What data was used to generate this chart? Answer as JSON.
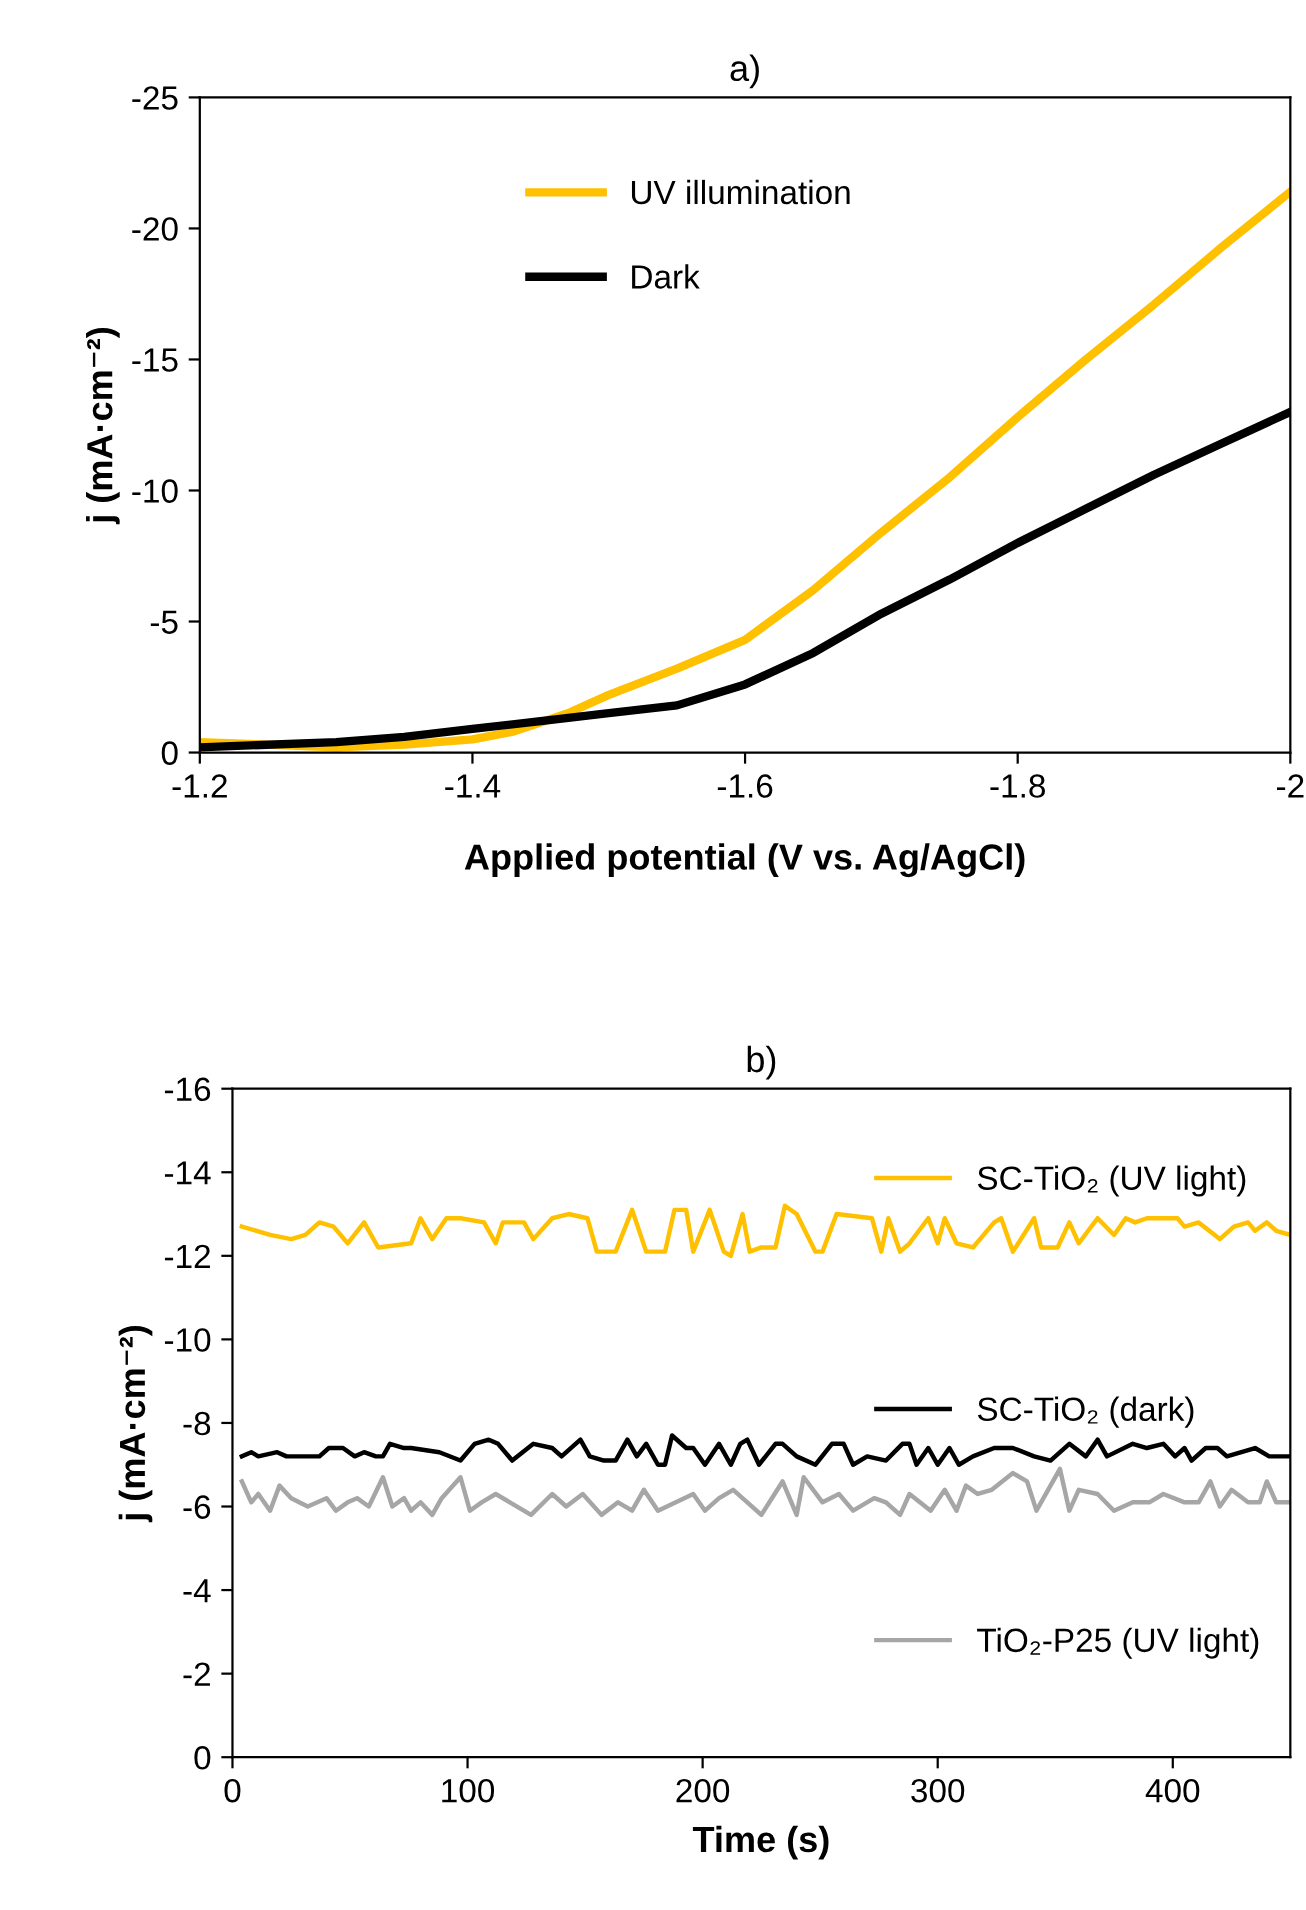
{
  "chart_data": [
    {
      "type": "line",
      "title": "a)",
      "xlabel": "Applied potential (V vs. Ag/AgCl)",
      "ylabel": "j (mA·cm⁻²)",
      "xlim": [
        -1.2,
        -2
      ],
      "xticks": [
        -1.2,
        -1.4,
        -1.6,
        -1.8,
        -2
      ],
      "ylim": [
        0,
        -25
      ],
      "yticks": [
        0,
        -5,
        -10,
        -15,
        -20,
        -25
      ],
      "legend": "top",
      "series": [
        {
          "name": "UV illumination",
          "color": "#ffc000",
          "x": [
            -1.2,
            -1.3,
            -1.35,
            -1.4,
            -1.43,
            -1.47,
            -1.5,
            -1.55,
            -1.6,
            -1.65,
            -1.7,
            -1.75,
            -1.8,
            -1.85,
            -1.9,
            -1.95,
            -2.0
          ],
          "values": [
            -0.4,
            -0.2,
            -0.3,
            -0.5,
            -0.8,
            -1.5,
            -2.2,
            -3.2,
            -4.3,
            -6.2,
            -8.4,
            -10.5,
            -12.8,
            -15.0,
            -17.1,
            -19.3,
            -21.4
          ]
        },
        {
          "name": "Dark",
          "color": "#000000",
          "x": [
            -1.2,
            -1.3,
            -1.35,
            -1.4,
            -1.45,
            -1.5,
            -1.55,
            -1.6,
            -1.65,
            -1.7,
            -1.75,
            -1.8,
            -1.85,
            -1.9,
            -1.95,
            -2.0
          ],
          "values": [
            -0.2,
            -0.4,
            -0.6,
            -0.9,
            -1.2,
            -1.5,
            -1.8,
            -2.6,
            -3.8,
            -5.3,
            -6.6,
            -8.0,
            -9.3,
            -10.6,
            -11.8,
            -13.0
          ]
        }
      ]
    },
    {
      "type": "line",
      "title": "b)",
      "xlabel": "Time (s)",
      "ylabel": "j (mA·cm⁻²)",
      "xlim": [
        0,
        450
      ],
      "xticks": [
        0,
        100,
        200,
        300,
        400
      ],
      "ylim": [
        0,
        -16
      ],
      "yticks": [
        0,
        -2,
        -4,
        -6,
        -8,
        -10,
        -12,
        -14,
        -16
      ],
      "legend": "top right",
      "series": [
        {
          "name": "SC-TiO₂ (UV light)",
          "color": "#ffc000",
          "x": [
            4,
            16,
            25,
            31,
            37,
            43,
            49,
            56,
            62,
            76,
            80,
            85,
            91,
            97,
            107,
            112,
            115,
            124,
            128,
            136,
            143,
            151,
            155,
            163,
            170,
            176,
            184,
            188,
            193,
            196,
            203,
            209,
            212,
            217,
            220,
            225,
            231,
            235,
            240,
            248,
            251,
            257,
            272,
            276,
            279,
            284,
            288,
            296,
            300,
            303,
            308,
            315,
            324,
            327,
            332,
            341,
            344,
            351,
            356,
            360,
            368,
            375,
            380,
            384,
            389,
            402,
            405,
            411,
            420,
            426,
            432,
            435,
            440,
            444,
            450
          ],
          "values": [
            -12.7,
            -12.5,
            -12.4,
            -12.5,
            -12.8,
            -12.7,
            -12.3,
            -12.8,
            -12.2,
            -12.3,
            -12.9,
            -12.4,
            -12.9,
            -12.9,
            -12.8,
            -12.3,
            -12.8,
            -12.8,
            -12.4,
            -12.9,
            -13.0,
            -12.9,
            -12.1,
            -12.1,
            -13.1,
            -12.1,
            -12.1,
            -13.1,
            -13.1,
            -12.1,
            -13.1,
            -12.1,
            -12.0,
            -13.0,
            -12.1,
            -12.2,
            -12.2,
            -13.2,
            -13.0,
            -12.1,
            -12.1,
            -13.0,
            -12.9,
            -12.1,
            -12.9,
            -12.1,
            -12.3,
            -12.9,
            -12.3,
            -12.9,
            -12.3,
            -12.2,
            -12.8,
            -12.9,
            -12.1,
            -12.9,
            -12.2,
            -12.2,
            -12.8,
            -12.3,
            -12.9,
            -12.5,
            -12.9,
            -12.8,
            -12.9,
            -12.9,
            -12.7,
            -12.8,
            -12.4,
            -12.7,
            -12.8,
            -12.6,
            -12.8,
            -12.6,
            -12.5
          ]
        },
        {
          "name": "SC-TiO₂ (dark)",
          "color": "#000000",
          "x": [
            4,
            8,
            11,
            19,
            23,
            34,
            37,
            41,
            47,
            52,
            56,
            61,
            64,
            67,
            73,
            76,
            88,
            97,
            103,
            109,
            113,
            119,
            128,
            136,
            140,
            148,
            152,
            158,
            163,
            168,
            172,
            176,
            181,
            184,
            187,
            193,
            196,
            201,
            207,
            212,
            216,
            219,
            224,
            231,
            234,
            240,
            248,
            255,
            260,
            264,
            270,
            278,
            285,
            288,
            291,
            296,
            300,
            305,
            309,
            315,
            324,
            332,
            341,
            348,
            356,
            363,
            368,
            372,
            383,
            389,
            396,
            401,
            405,
            408,
            414,
            419,
            423,
            435,
            441,
            450
          ],
          "values": [
            -7.2,
            -7.3,
            -7.2,
            -7.3,
            -7.2,
            -7.2,
            -7.2,
            -7.4,
            -7.4,
            -7.2,
            -7.3,
            -7.2,
            -7.2,
            -7.5,
            -7.4,
            -7.4,
            -7.3,
            -7.1,
            -7.5,
            -7.6,
            -7.5,
            -7.1,
            -7.5,
            -7.4,
            -7.2,
            -7.6,
            -7.2,
            -7.1,
            -7.1,
            -7.6,
            -7.2,
            -7.5,
            -7.0,
            -7.0,
            -7.7,
            -7.4,
            -7.4,
            -7.0,
            -7.5,
            -7.0,
            -7.5,
            -7.6,
            -7.0,
            -7.5,
            -7.5,
            -7.2,
            -7.0,
            -7.5,
            -7.5,
            -7.0,
            -7.2,
            -7.1,
            -7.5,
            -7.5,
            -7.0,
            -7.4,
            -7.0,
            -7.4,
            -7.0,
            -7.2,
            -7.4,
            -7.4,
            -7.2,
            -7.1,
            -7.5,
            -7.2,
            -7.6,
            -7.2,
            -7.5,
            -7.4,
            -7.5,
            -7.2,
            -7.4,
            -7.1,
            -7.4,
            -7.4,
            -7.2,
            -7.4,
            -7.2,
            -7.2
          ]
        },
        {
          "name": "TiO₂-P25 (UV light)",
          "color": "#a6a6a6",
          "x": [
            4,
            8,
            11,
            16,
            20,
            25,
            32,
            40,
            44,
            49,
            53,
            58,
            64,
            68,
            73,
            76,
            80,
            85,
            89,
            97,
            101,
            106,
            112,
            118,
            127,
            136,
            142,
            149,
            157,
            164,
            170,
            175,
            181,
            196,
            201,
            207,
            213,
            219,
            225,
            234,
            240,
            243,
            251,
            258,
            264,
            273,
            278,
            284,
            288,
            297,
            303,
            308,
            312,
            317,
            323,
            332,
            338,
            342,
            352,
            356,
            360,
            368,
            375,
            383,
            390,
            396,
            405,
            411,
            416,
            420,
            425,
            432,
            437,
            440,
            444,
            450
          ],
          "values": [
            -6.6,
            -6.1,
            -6.3,
            -5.9,
            -6.5,
            -6.2,
            -6.0,
            -6.2,
            -5.9,
            -6.1,
            -6.2,
            -6.0,
            -6.7,
            -6.0,
            -6.2,
            -5.9,
            -6.1,
            -5.8,
            -6.2,
            -6.7,
            -5.9,
            -6.1,
            -6.3,
            -6.1,
            -5.8,
            -6.3,
            -6.0,
            -6.3,
            -5.8,
            -6.1,
            -5.9,
            -6.4,
            -5.9,
            -6.3,
            -5.9,
            -6.2,
            -6.4,
            -6.1,
            -5.8,
            -6.6,
            -5.8,
            -6.7,
            -6.1,
            -6.3,
            -5.9,
            -6.2,
            -6.1,
            -5.8,
            -6.3,
            -5.9,
            -6.4,
            -5.9,
            -6.5,
            -6.3,
            -6.4,
            -6.8,
            -6.6,
            -5.9,
            -6.9,
            -5.9,
            -6.4,
            -6.3,
            -5.9,
            -6.1,
            -6.1,
            -6.3,
            -6.1,
            -6.1,
            -6.6,
            -6.0,
            -6.4,
            -6.1,
            -6.1,
            -6.6,
            -6.1,
            -6.1
          ]
        }
      ]
    }
  ]
}
